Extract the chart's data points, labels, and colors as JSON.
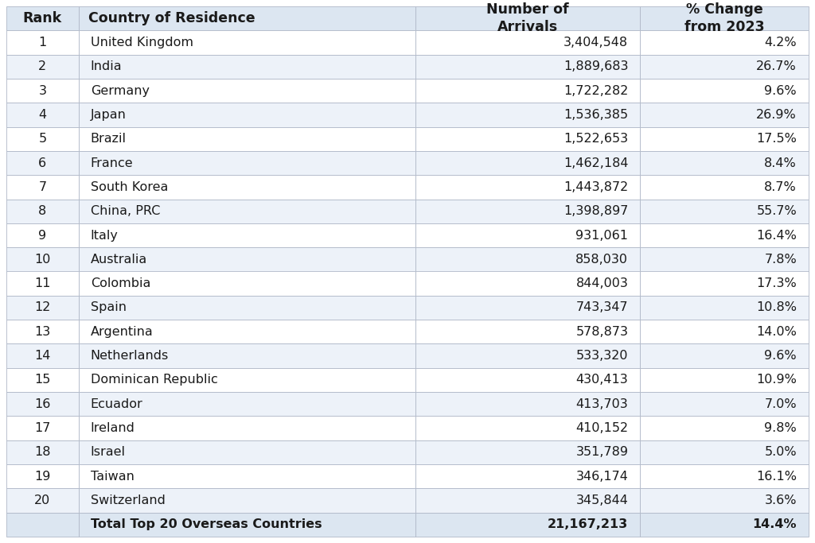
{
  "ranks": [
    "1",
    "2",
    "3",
    "4",
    "5",
    "6",
    "7",
    "8",
    "9",
    "10",
    "11",
    "12",
    "13",
    "14",
    "15",
    "16",
    "17",
    "18",
    "19",
    "20"
  ],
  "countries": [
    "United Kingdom",
    "India",
    "Germany",
    "Japan",
    "Brazil",
    "France",
    "South Korea",
    "China, PRC",
    "Italy",
    "Australia",
    "Colombia",
    "Spain",
    "Argentina",
    "Netherlands",
    "Dominican Republic",
    "Ecuador",
    "Ireland",
    "Israel",
    "Taiwan",
    "Switzerland"
  ],
  "arrivals": [
    "3,404,548",
    "1,889,683",
    "1,722,282",
    "1,536,385",
    "1,522,653",
    "1,462,184",
    "1,443,872",
    "1,398,897",
    "931,061",
    "858,030",
    "844,003",
    "743,347",
    "578,873",
    "533,320",
    "430,413",
    "413,703",
    "410,152",
    "351,789",
    "346,174",
    "345,844"
  ],
  "pct_change": [
    "4.2%",
    "26.7%",
    "9.6%",
    "26.9%",
    "17.5%",
    "8.4%",
    "8.7%",
    "55.7%",
    "16.4%",
    "7.8%",
    "17.3%",
    "10.8%",
    "14.0%",
    "9.6%",
    "10.9%",
    "7.0%",
    "9.8%",
    "5.0%",
    "16.1%",
    "3.6%"
  ],
  "total_arrivals": "21,167,213",
  "total_pct": "14.4%",
  "total_label": "Total Top 20 Overseas Countries",
  "header_rank": "Rank",
  "header_country": "Country of Residence",
  "header_arrivals": "Number of\nArrivals",
  "header_pct": "% Change\nfrom 2023",
  "header_bg": "#dce6f1",
  "row_bg_odd": "#ffffff",
  "row_bg_even": "#edf2f9",
  "total_row_bg": "#dce6f1",
  "border_color": "#b0b8c8",
  "text_color": "#1a1a1a",
  "font_size": 11.5,
  "header_font_size": 12.5
}
